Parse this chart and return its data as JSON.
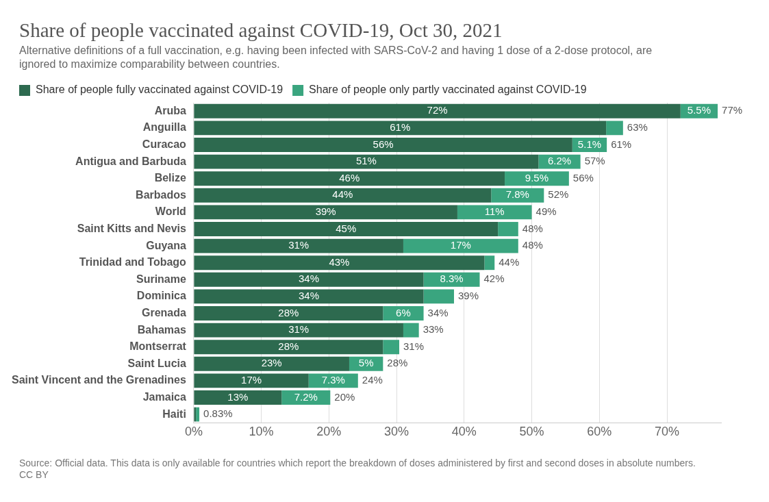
{
  "chart_data": {
    "type": "bar",
    "orientation": "horizontal",
    "stacked": true,
    "title": "Share of people vaccinated against COVID-19, Oct 30, 2021",
    "subtitle": "Alternative definitions of a full vaccination, e.g. having been infected with SARS-CoV-2 and having 1 dose of a 2-dose protocol, are ignored to maximize comparability between countries.",
    "categories": [
      "Aruba",
      "Anguilla",
      "Curacao",
      "Antigua and Barbuda",
      "Belize",
      "Barbados",
      "World",
      "Saint Kitts and Nevis",
      "Guyana",
      "Trinidad and Tobago",
      "Suriname",
      "Dominica",
      "Grenada",
      "Bahamas",
      "Montserrat",
      "Saint Lucia",
      "Saint Vincent and the Grenadines",
      "Jamaica",
      "Haiti"
    ],
    "series": [
      {
        "name": "Share of people fully vaccinated against COVID-19",
        "color": "#2d6a4f",
        "values": [
          72,
          61,
          56,
          51,
          46,
          44,
          39,
          45,
          31,
          43,
          34,
          34,
          28,
          31,
          28,
          23,
          17,
          13,
          0.33
        ],
        "value_labels": [
          "72%",
          "61%",
          "56%",
          "51%",
          "46%",
          "44%",
          "39%",
          "45%",
          "31%",
          "43%",
          "34%",
          "34%",
          "28%",
          "31%",
          "28%",
          "23%",
          "17%",
          "13%",
          null
        ]
      },
      {
        "name": "Share of people only partly vaccinated against COVID-19",
        "color": "#3aa57f",
        "values": [
          5.5,
          2.5,
          5.1,
          6.2,
          9.5,
          7.8,
          11,
          3,
          17,
          1.5,
          8.3,
          4.5,
          6,
          2.3,
          2.4,
          5,
          7.3,
          7.2,
          0.5
        ],
        "value_labels": [
          "5.5%",
          null,
          "5.1%",
          "6.2%",
          "9.5%",
          "7.8%",
          "11%",
          null,
          "17%",
          null,
          "8.3%",
          null,
          "6%",
          null,
          null,
          "5%",
          "7.3%",
          "7.2%",
          null
        ]
      }
    ],
    "totals": [
      "77%",
      "63%",
      "61%",
      "57%",
      "56%",
      "52%",
      "49%",
      "48%",
      "48%",
      "44%",
      "42%",
      "39%",
      "34%",
      "33%",
      "31%",
      "28%",
      "24%",
      "20%",
      "0.83%"
    ],
    "xlim": [
      0,
      78
    ],
    "xticks": [
      {
        "value": 0,
        "label": "0%"
      },
      {
        "value": 10,
        "label": "10%"
      },
      {
        "value": 20,
        "label": "20%"
      },
      {
        "value": 30,
        "label": "30%"
      },
      {
        "value": 40,
        "label": "40%"
      },
      {
        "value": 50,
        "label": "50%"
      },
      {
        "value": 60,
        "label": "60%"
      },
      {
        "value": 70,
        "label": "70%"
      }
    ],
    "grid": "x",
    "legend": "top left",
    "annotations": [
      "Source: Official data. This data is only available for countries which report the breakdown of doses administered by first and second doses in absolute numbers.",
      "CC BY"
    ]
  }
}
